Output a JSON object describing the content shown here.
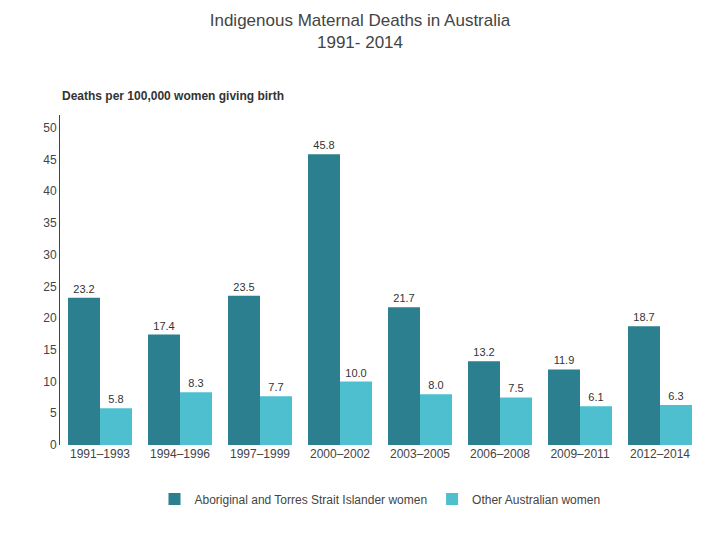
{
  "chart_data": {
    "type": "bar",
    "title": "Indigenous Maternal Deaths in Australia\n1991- 2014",
    "ylabel": "Deaths per 100,000 women giving birth",
    "categories": [
      "1991–1993",
      "1994–1996",
      "1997–1999",
      "2000–2002",
      "2003–2005",
      "2006–2008",
      "2009–2011",
      "2012–2014"
    ],
    "series": [
      {
        "name": "Aboriginal and Torres Strait Islander women",
        "color": "#2b7f8e",
        "values": [
          23.2,
          17.4,
          23.5,
          45.8,
          21.7,
          13.2,
          11.9,
          18.7
        ]
      },
      {
        "name": "Other Australian women",
        "color": "#4dbfcf",
        "values": [
          5.8,
          8.3,
          7.7,
          10.0,
          8.0,
          7.5,
          6.1,
          6.3
        ],
        "value_labels": [
          "5.8",
          "8.3",
          "7.7",
          "10.0",
          "8.0",
          "7.5",
          "6.1",
          "6.3"
        ]
      }
    ],
    "ylim": [
      0,
      52
    ],
    "yticks": [
      0,
      5,
      10,
      15,
      20,
      25,
      30,
      35,
      40,
      45,
      50
    ],
    "grid": false,
    "data_labels": true,
    "legend": "bottom"
  }
}
